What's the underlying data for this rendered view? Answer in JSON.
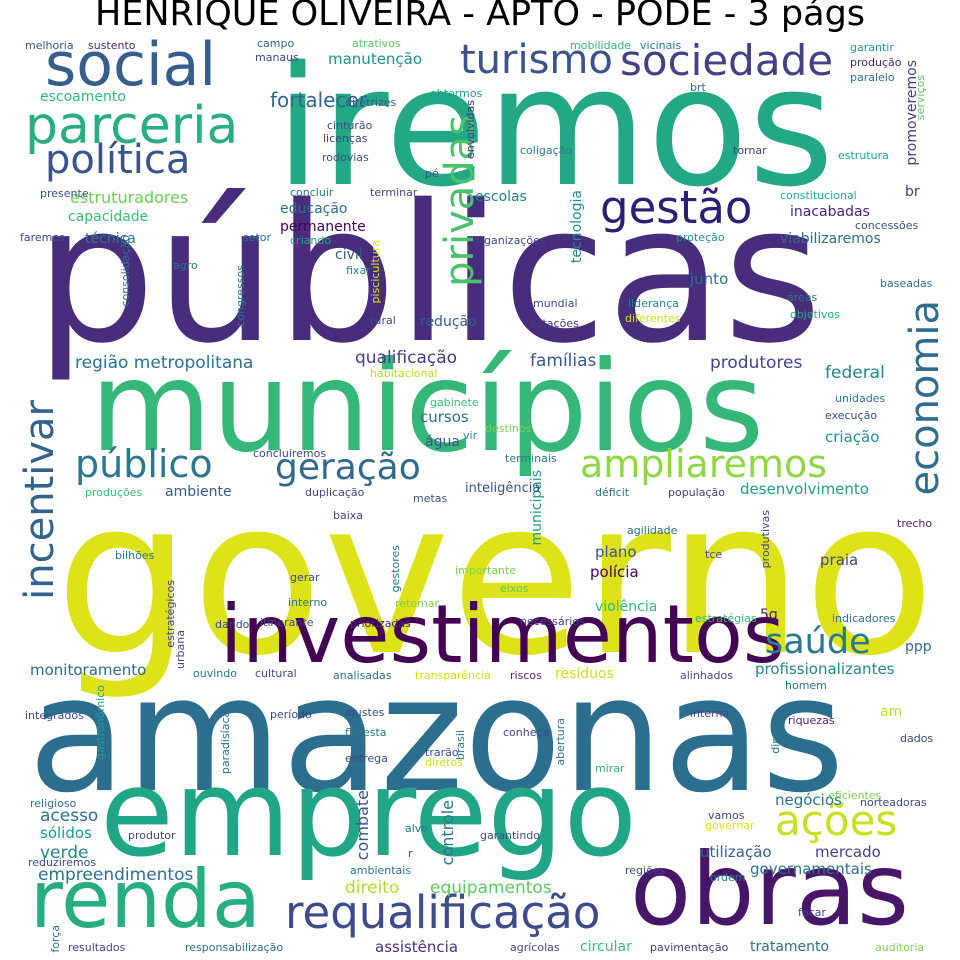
{
  "title": "HENRIQUE OLIVEIRA - APTO - PODE - 3 págs",
  "words": [
    {
      "text": "governo",
      "color": "#dde318"
    },
    {
      "text": "amazonas",
      "color": "#2c6e8e"
    },
    {
      "text": "públicas",
      "color": "#472d7b"
    },
    {
      "text": "iremos",
      "color": "#22a884"
    },
    {
      "text": "municípios",
      "color": "#35b779"
    },
    {
      "text": "emprego",
      "color": "#21a685"
    },
    {
      "text": "investimentos",
      "color": "#440154"
    },
    {
      "text": "obras",
      "color": "#481668"
    },
    {
      "text": "renda",
      "color": "#26ad81"
    },
    {
      "text": "social",
      "color": "#355e8d"
    },
    {
      "text": "parceria",
      "color": "#29af7f"
    },
    {
      "text": "requalificação",
      "color": "#3e4a89"
    },
    {
      "text": "turismo",
      "color": "#3b528b"
    },
    {
      "text": "sociedade",
      "color": "#424186"
    },
    {
      "text": "gestão",
      "color": "#2d1e74"
    },
    {
      "text": "política",
      "color": "#3a538b"
    },
    {
      "text": "ampliaremos",
      "color": "#8fd744"
    },
    {
      "text": "público",
      "color": "#2a788e"
    },
    {
      "text": "economia",
      "color": "#2f6c8e"
    },
    {
      "text": "incentivar",
      "color": "#33638d"
    },
    {
      "text": "privadas",
      "color": "#4ac16d"
    },
    {
      "text": "ações",
      "color": "#c8e020"
    },
    {
      "text": "geração",
      "color": "#31688e"
    },
    {
      "text": "saúde",
      "color": "#2a788e"
    },
    {
      "text": "fortalecer",
      "color": "#31678e"
    },
    {
      "text": "escoamento",
      "color": "#35b779"
    },
    {
      "text": "estruturadores",
      "color": "#6ece58"
    },
    {
      "text": "capacidade",
      "color": "#3dbc74"
    },
    {
      "text": "educação",
      "color": "#2d708e"
    },
    {
      "text": "permanente",
      "color": "#440154"
    },
    {
      "text": "escolas",
      "color": "#277f8e"
    },
    {
      "text": "técnica",
      "color": "#2a7b8e"
    },
    {
      "text": "viabilizaremos",
      "color": "#2e6e8e"
    },
    {
      "text": "inacabadas",
      "color": "#482878"
    },
    {
      "text": "região metropolitana",
      "color": "#2c718e"
    },
    {
      "text": "qualificação",
      "color": "#433e85"
    },
    {
      "text": "famílias",
      "color": "#38598c"
    },
    {
      "text": "produtores",
      "color": "#3f4788"
    },
    {
      "text": "federal",
      "color": "#25838e"
    },
    {
      "text": "junto",
      "color": "#2c738e"
    },
    {
      "text": "redução",
      "color": "#365c8d"
    },
    {
      "text": "cursos",
      "color": "#2d708e"
    },
    {
      "text": "água",
      "color": "#3a538b"
    },
    {
      "text": "ambiente",
      "color": "#38598c"
    },
    {
      "text": "desenvolvimento",
      "color": "#1f9e89"
    },
    {
      "text": "criação",
      "color": "#21908d"
    },
    {
      "text": "manutenção",
      "color": "#20928c"
    },
    {
      "text": "promoveremos",
      "color": "#433e85"
    },
    {
      "text": "tecnologia",
      "color": "#23898e"
    },
    {
      "text": "civil",
      "color": "#38598c"
    },
    {
      "text": "monitoramento",
      "color": "#31688e"
    },
    {
      "text": "profissionalizantes",
      "color": "#25848e"
    },
    {
      "text": "plano",
      "color": "#39568c"
    },
    {
      "text": "polícia",
      "color": "#440154"
    },
    {
      "text": "praia",
      "color": "#3f4788"
    },
    {
      "text": "violência",
      "color": "#34b679"
    },
    {
      "text": "municipais",
      "color": "#1f9a8a"
    },
    {
      "text": "negócios",
      "color": "#2a768e"
    },
    {
      "text": "mercado",
      "color": "#414487"
    },
    {
      "text": "utilização",
      "color": "#34618d"
    },
    {
      "text": "governamentais",
      "color": "#2d718e"
    },
    {
      "text": "equipamentos",
      "color": "#5ec962"
    },
    {
      "text": "direito",
      "color": "#addc30"
    },
    {
      "text": "assistência",
      "color": "#46327e"
    },
    {
      "text": "acesso",
      "color": "#2d708e"
    },
    {
      "text": "sólidos",
      "color": "#1f9a8a"
    },
    {
      "text": "verde",
      "color": "#25848e"
    },
    {
      "text": "empreendimentos",
      "color": "#2d708e"
    },
    {
      "text": "controle",
      "color": "#2c728e"
    },
    {
      "text": "combate",
      "color": "#3b528b"
    },
    {
      "text": "am",
      "color": "#b5de2b"
    },
    {
      "text": "ppp",
      "color": "#2f6c8e"
    },
    {
      "text": "5g",
      "color": "#481f70"
    },
    {
      "text": "br",
      "color": "#453781"
    },
    {
      "text": "resíduos",
      "color": "#cae11f"
    },
    {
      "text": "inteligência",
      "color": "#3a538b"
    },
    {
      "text": "tratamento",
      "color": "#2d708e"
    },
    {
      "text": "circular",
      "color": "#3dbc74"
    },
    {
      "text": "melhoria",
      "color": "#3b528b"
    },
    {
      "text": "sustento",
      "color": "#482878"
    },
    {
      "text": "campo",
      "color": "#33638d"
    },
    {
      "text": "atrativos",
      "color": "#5ec962"
    },
    {
      "text": "mobilidade",
      "color": "#34b679"
    },
    {
      "text": "vicinais",
      "color": "#2a788e"
    },
    {
      "text": "garantir",
      "color": "#1f9e89"
    },
    {
      "text": "produção",
      "color": "#482878"
    },
    {
      "text": "paralelo",
      "color": "#2c728e"
    },
    {
      "text": "manaus",
      "color": "#3e4a89"
    },
    {
      "text": "obtermos",
      "color": "#1f9e89"
    },
    {
      "text": "diretrizes",
      "color": "#38598c"
    },
    {
      "text": "brt",
      "color": "#31688e"
    },
    {
      "text": "cinturão",
      "color": "#3e4a89"
    },
    {
      "text": "licenças",
      "color": "#433e85"
    },
    {
      "text": "rodovias",
      "color": "#3b528b"
    },
    {
      "text": "coligação",
      "color": "#2a788e"
    },
    {
      "text": "envolvidas",
      "color": "#46327e"
    },
    {
      "text": "tornar",
      "color": "#433e85"
    },
    {
      "text": "estrutura",
      "color": "#22a884"
    },
    {
      "text": "serviços",
      "color": "#5ec962"
    },
    {
      "text": "presente",
      "color": "#3b528b"
    },
    {
      "text": "concluir",
      "color": "#2a788e"
    },
    {
      "text": "terminar",
      "color": "#414487"
    },
    {
      "text": "pé",
      "color": "#3b528b"
    },
    {
      "text": "constitucional",
      "color": "#25ab82"
    },
    {
      "text": "concessões",
      "color": "#3b528b"
    },
    {
      "text": "faremos",
      "color": "#3e4a89"
    },
    {
      "text": "setor",
      "color": "#2c728e"
    },
    {
      "text": "criando",
      "color": "#23a983"
    },
    {
      "text": "organizações",
      "color": "#404688"
    },
    {
      "text": "proteção",
      "color": "#21918c"
    },
    {
      "text": "agro",
      "color": "#2c728e"
    },
    {
      "text": "fixar",
      "color": "#25848e"
    },
    {
      "text": "consolidação",
      "color": "#2c728e"
    },
    {
      "text": "congressos",
      "color": "#2a788e"
    },
    {
      "text": "piscicultura",
      "color": "#dde318"
    },
    {
      "text": "mundial",
      "color": "#3e4a89"
    },
    {
      "text": "liderança",
      "color": "#26828e"
    },
    {
      "text": "diferentes",
      "color": "#c8e020"
    },
    {
      "text": "baseadas",
      "color": "#2c728e"
    },
    {
      "text": "áreas",
      "color": "#2a788e"
    },
    {
      "text": "objetivos",
      "color": "#26ad81"
    },
    {
      "text": "rural",
      "color": "#3e4a89"
    },
    {
      "text": "estações",
      "color": "#433e85"
    },
    {
      "text": "habitacional",
      "color": "#b5de2b"
    },
    {
      "text": "unidades",
      "color": "#2c728e"
    },
    {
      "text": "execução",
      "color": "#3e4a89"
    },
    {
      "text": "gabinete",
      "color": "#3dbc74"
    },
    {
      "text": "destinos",
      "color": "#7ad151"
    },
    {
      "text": "vir",
      "color": "#23898e"
    },
    {
      "text": "concluiremos",
      "color": "#3e4a89"
    },
    {
      "text": "terminais",
      "color": "#2a788e"
    },
    {
      "text": "produções",
      "color": "#3dbc74"
    },
    {
      "text": "duplicação",
      "color": "#3e4a89"
    },
    {
      "text": "metas",
      "color": "#3b528b"
    },
    {
      "text": "déficit",
      "color": "#2c728e"
    },
    {
      "text": "população",
      "color": "#414487"
    },
    {
      "text": "baixa",
      "color": "#3e4a89"
    },
    {
      "text": "agilidade",
      "color": "#2c728e"
    },
    {
      "text": "trecho",
      "color": "#481f70"
    },
    {
      "text": "produtivas",
      "color": "#3e4a89"
    },
    {
      "text": "gestores",
      "color": "#2a788e"
    },
    {
      "text": "importante",
      "color": "#7ad151"
    },
    {
      "text": "tce",
      "color": "#3e4a89"
    },
    {
      "text": "bilhões",
      "color": "#2c728e"
    },
    {
      "text": "gerar",
      "color": "#3e4a89"
    },
    {
      "text": "interno",
      "color": "#2c728e"
    },
    {
      "text": "retomar",
      "color": "#7ad151"
    },
    {
      "text": "eixos",
      "color": "#5ec962"
    },
    {
      "text": "estratégicos",
      "color": "#3e4a89"
    },
    {
      "text": "priorizadas",
      "color": "#482878"
    },
    {
      "text": "itinerante",
      "color": "#433e85"
    },
    {
      "text": "dando",
      "color": "#3e4a89"
    },
    {
      "text": "necessários",
      "color": "#3e4a89"
    },
    {
      "text": "estratégias",
      "color": "#35b779"
    },
    {
      "text": "indicadores",
      "color": "#2c728e"
    },
    {
      "text": "urbana",
      "color": "#3e4a89"
    },
    {
      "text": "gastronômico",
      "color": "#1f9e89"
    },
    {
      "text": "ouvindo",
      "color": "#2c728e"
    },
    {
      "text": "cultural",
      "color": "#3e4a89"
    },
    {
      "text": "analisadas",
      "color": "#2c728e"
    },
    {
      "text": "transparência",
      "color": "#cae11f"
    },
    {
      "text": "riscos",
      "color": "#482878"
    },
    {
      "text": "alinhados",
      "color": "#3e4a89"
    },
    {
      "text": "homem",
      "color": "#2c728e"
    },
    {
      "text": "integrados",
      "color": "#3e4a89"
    },
    {
      "text": "paradisíacas",
      "color": "#2c728e"
    },
    {
      "text": "período",
      "color": "#3e4a89"
    },
    {
      "text": "ajustes",
      "color": "#3e4a89"
    },
    {
      "text": "floresta",
      "color": "#2a788e"
    },
    {
      "text": "brasil",
      "color": "#2c728e"
    },
    {
      "text": "conheça",
      "color": "#3e4a89"
    },
    {
      "text": "abertura",
      "color": "#2a788e"
    },
    {
      "text": "interna",
      "color": "#3e4a89"
    },
    {
      "text": "diretriz",
      "color": "#2c728e"
    },
    {
      "text": "riquezas",
      "color": "#482878"
    },
    {
      "text": "dados",
      "color": "#3e4a89"
    },
    {
      "text": "entrega",
      "color": "#3e4a89"
    },
    {
      "text": "trarão",
      "color": "#3e4a89"
    },
    {
      "text": "diretos",
      "color": "#cae11f"
    },
    {
      "text": "mirar",
      "color": "#35b779"
    },
    {
      "text": "eficientes",
      "color": "#7ad151"
    },
    {
      "text": "norteadoras",
      "color": "#3e4a89"
    },
    {
      "text": "religioso",
      "color": "#2c728e"
    },
    {
      "text": "produtor",
      "color": "#3e4a89"
    },
    {
      "text": "vamos",
      "color": "#433e85"
    },
    {
      "text": "governar",
      "color": "#dde318"
    },
    {
      "text": "alvo",
      "color": "#2a788e"
    },
    {
      "text": "garantindo",
      "color": "#3e4a89"
    },
    {
      "text": "reduziremos",
      "color": "#3e4a89"
    },
    {
      "text": "r",
      "color": "#3e4a89"
    },
    {
      "text": "ambientais",
      "color": "#2c728e"
    },
    {
      "text": "regiões",
      "color": "#3e4a89"
    },
    {
      "text": "ordem",
      "color": "#2a788e"
    },
    {
      "text": "força",
      "color": "#2c728e"
    },
    {
      "text": "resultados",
      "color": "#3e4a89"
    },
    {
      "text": "focar",
      "color": "#3e4a89"
    },
    {
      "text": "responsabilização",
      "color": "#2c728e"
    },
    {
      "text": "agrícolas",
      "color": "#3e4a89"
    },
    {
      "text": "pavimentação",
      "color": "#433e85"
    },
    {
      "text": "auditoria",
      "color": "#7ad151"
    }
  ]
}
